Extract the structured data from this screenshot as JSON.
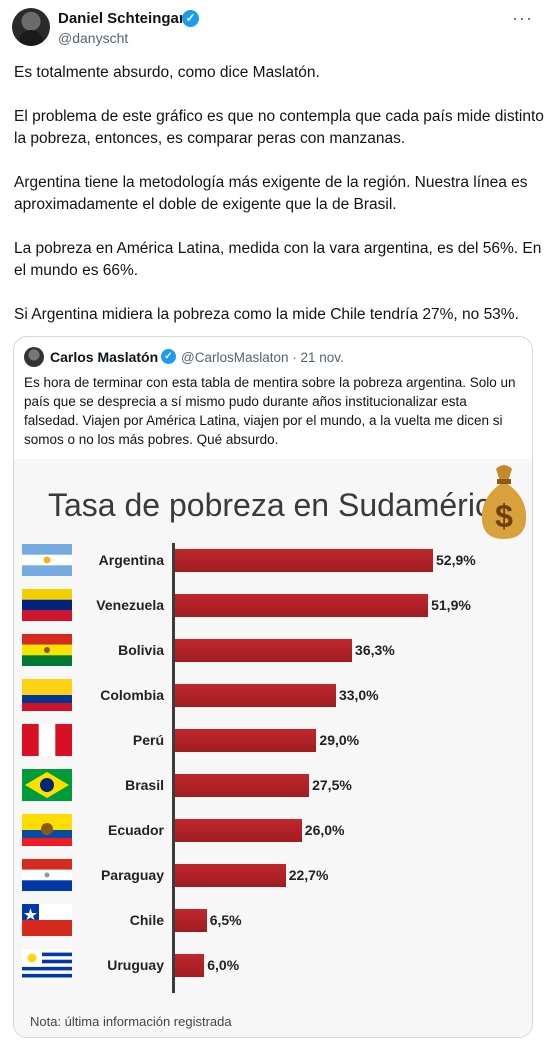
{
  "tweet": {
    "author_name": "Daniel Schteingart",
    "handle": "@danyscht",
    "paragraphs": [
      "Es totalmente absurdo, como dice Maslatón.",
      "El problema de este gráfico es que no contempla que cada país mide distinto la pobreza, entonces, es comparar peras con manzanas.",
      "Argentina tiene la metodología más exigente de la región. Nuestra línea es aproximadamente el doble de exigente que la de Brasil.",
      "La pobreza en América Latina, medida con la vara argentina, es del 56%. En el mundo es 66%.",
      "Si Argentina midiera la pobreza como la mide Chile tendría 27%, no 53%."
    ]
  },
  "quote": {
    "author_name": "Carlos Maslatón",
    "handle_date": "@CarlosMaslaton · 21 nov.",
    "text": "Es hora de terminar con esta tabla de mentira sobre la pobreza argentina. Solo un país que se desprecia a sí mismo pudo durante años institucionalizar esta falsedad. Viajen por América Latina, viajen por el mundo, a la vuelta me dicen si somos o no los más pobres. Qué absurdo."
  },
  "icons": {
    "verified": "verified-badge-icon",
    "more": "more-options-icon",
    "money": "money-bag-icon"
  },
  "colors": {
    "bar": "#b2232a",
    "verified": "#1d9bf0"
  },
  "chart_data": {
    "type": "bar",
    "title": "Tasa de pobreza en Sudamérica",
    "note": "Nota: última información registrada",
    "categories": [
      "Argentina",
      "Venezuela",
      "Bolivia",
      "Colombia",
      "Perú",
      "Brasil",
      "Ecuador",
      "Paraguay",
      "Chile",
      "Uruguay"
    ],
    "values": [
      52.9,
      51.9,
      36.3,
      33.0,
      29.0,
      27.5,
      26.0,
      22.7,
      6.5,
      6.0
    ],
    "value_labels": [
      "52,9%",
      "51,9%",
      "36,3%",
      "33,0%",
      "29,0%",
      "27,5%",
      "26,0%",
      "22,7%",
      "6,5%",
      "6,0%"
    ],
    "orientation": "horizontal",
    "xlim": [
      0,
      60
    ]
  }
}
